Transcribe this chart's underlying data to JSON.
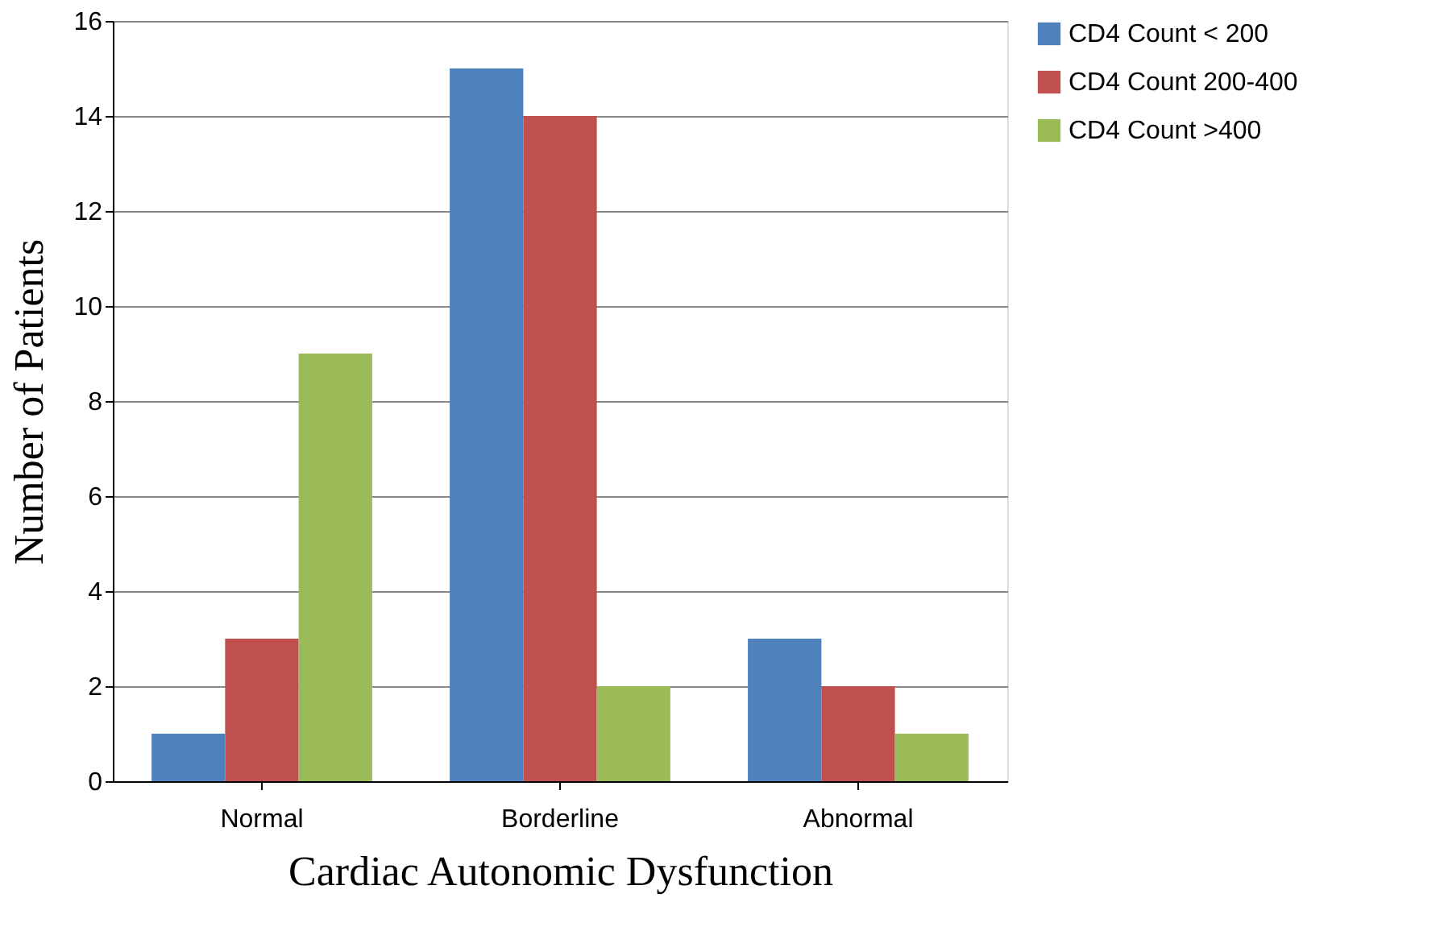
{
  "chart_data": {
    "type": "bar",
    "xlabel": "Cardiac Autonomic Dysfunction",
    "ylabel": "Number of Patients",
    "categories": [
      "Normal",
      "Borderline",
      "Abnormal"
    ],
    "series": [
      {
        "name": "CD4 Count < 200",
        "color": "#4f81bd",
        "values": [
          1,
          15,
          3
        ]
      },
      {
        "name": "CD4 Count 200-400",
        "color": "#c0504d",
        "values": [
          3,
          14,
          2
        ]
      },
      {
        "name": "CD4 Count >400",
        "color": "#9bbb59",
        "values": [
          9,
          2,
          1
        ]
      }
    ],
    "ylim": [
      0,
      16
    ],
    "yticks": [
      0,
      2,
      4,
      6,
      8,
      10,
      12,
      14,
      16
    ],
    "grid": "y",
    "legend": "right"
  }
}
